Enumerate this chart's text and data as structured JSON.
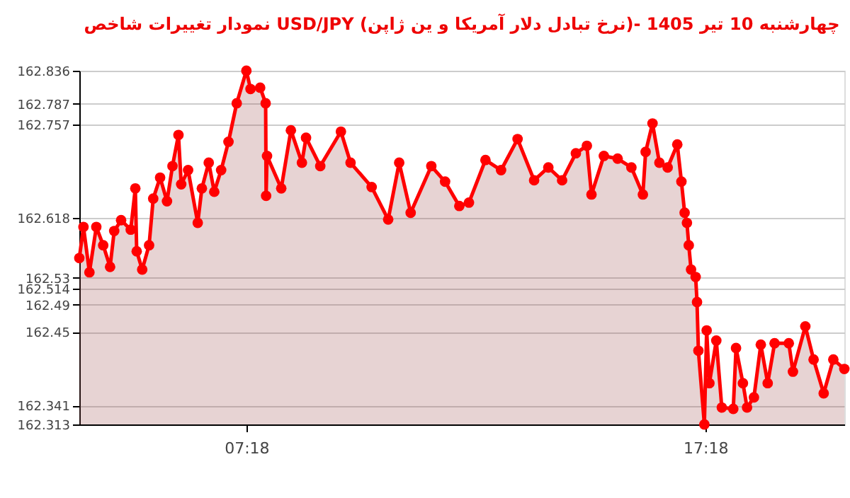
{
  "chart_data": {
    "type": "area",
    "title": "نمودار تغییرات شاخص USD/JPY (نرخ تبادل دلار آمریکا و ین ژاپن)- چهارشنبه  10 تیر 1405",
    "marker": "circle",
    "line_style": "solid",
    "grid": "y",
    "xlim": [
      3.66,
      20.33
    ],
    "xticks": [
      {
        "value": 7.3,
        "label": "07:18"
      },
      {
        "value": 17.3,
        "label": "17:18"
      }
    ],
    "ylim": [
      162.313,
      162.836
    ],
    "yticks": [
      162.313,
      162.341,
      162.45,
      162.49,
      162.514,
      162.53,
      162.618,
      162.757,
      162.787,
      162.836
    ],
    "series": [
      {
        "color": "#ff0000",
        "x": [
          3.66,
          3.75,
          3.88,
          4.03,
          4.18,
          4.33,
          4.42,
          4.57,
          4.78,
          4.88,
          4.91,
          5.03,
          5.18,
          5.27,
          5.42,
          5.57,
          5.69,
          5.82,
          5.88,
          6.03,
          6.24,
          6.33,
          6.48,
          6.6,
          6.75,
          6.91,
          7.09,
          7.3,
          7.39,
          7.6,
          7.72,
          7.73,
          7.75,
          8.06,
          8.27,
          8.51,
          8.6,
          8.91,
          9.36,
          9.57,
          10.03,
          10.39,
          10.63,
          10.88,
          11.33,
          11.63,
          11.94,
          12.15,
          12.51,
          12.85,
          13.21,
          13.57,
          13.88,
          14.18,
          14.48,
          14.72,
          14.82,
          15.09,
          15.39,
          15.69,
          15.94,
          16.0,
          16.15,
          16.3,
          16.48,
          16.69,
          16.78,
          16.85,
          16.9,
          16.94,
          16.99,
          17.09,
          17.12,
          17.15,
          17.28,
          17.33,
          17.39,
          17.54,
          17.66,
          17.91,
          17.97,
          18.12,
          18.21,
          18.36,
          18.51,
          18.66,
          18.81,
          19.12,
          19.21,
          19.48,
          19.66,
          19.88,
          20.09,
          20.33
        ],
        "values": [
          162.559,
          162.605,
          162.538,
          162.605,
          162.578,
          162.546,
          162.599,
          162.615,
          162.601,
          162.662,
          162.569,
          162.542,
          162.578,
          162.647,
          162.678,
          162.643,
          162.695,
          162.741,
          162.668,
          162.689,
          162.611,
          162.662,
          162.7,
          162.657,
          162.689,
          162.731,
          162.788,
          162.836,
          162.809,
          162.811,
          162.788,
          162.651,
          162.71,
          162.662,
          162.748,
          162.7,
          162.737,
          162.695,
          162.746,
          162.7,
          162.664,
          162.616,
          162.7,
          162.626,
          162.695,
          162.672,
          162.636,
          162.641,
          162.704,
          162.689,
          162.735,
          162.674,
          162.693,
          162.674,
          162.714,
          162.725,
          162.653,
          162.71,
          162.706,
          162.693,
          162.653,
          162.716,
          162.758,
          162.7,
          162.693,
          162.727,
          162.672,
          162.626,
          162.611,
          162.578,
          162.542,
          162.531,
          162.494,
          162.422,
          162.313,
          162.452,
          162.374,
          162.437,
          162.338,
          162.336,
          162.426,
          162.374,
          162.338,
          162.353,
          162.431,
          162.374,
          162.433,
          162.433,
          162.391,
          162.458,
          162.409,
          162.359,
          162.409,
          162.395
        ]
      }
    ]
  }
}
